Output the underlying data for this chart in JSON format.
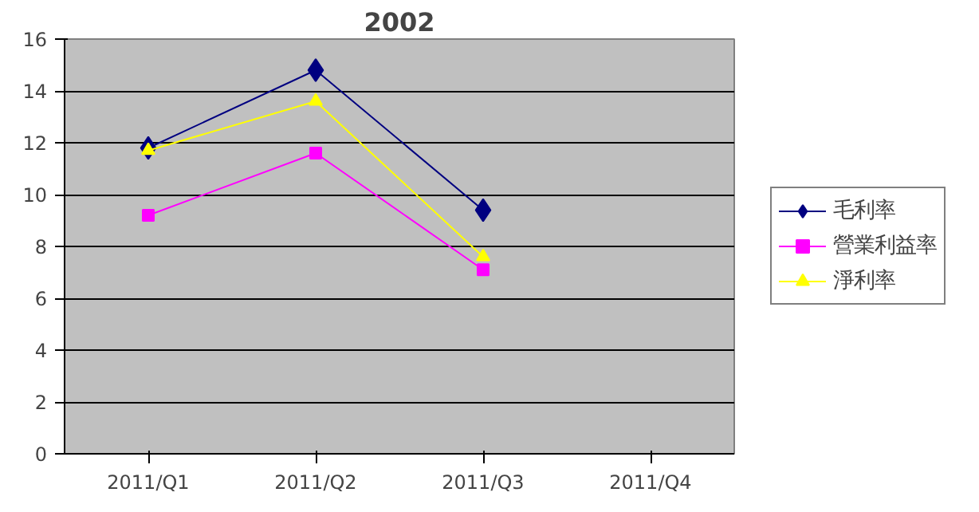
{
  "chart_data": {
    "type": "line",
    "title": "2002",
    "categories": [
      "2011/Q1",
      "2011/Q2",
      "2011/Q3",
      "2011/Q4"
    ],
    "series": [
      {
        "name": "毛利率",
        "color": "#000080",
        "marker": "diamond",
        "values": [
          11.8,
          14.8,
          9.4,
          null
        ]
      },
      {
        "name": "營業利益率",
        "color": "#ff00ff",
        "marker": "square",
        "values": [
          9.2,
          11.6,
          7.1,
          null
        ]
      },
      {
        "name": "淨利率",
        "color": "#ffff00",
        "marker": "triangle",
        "values": [
          11.7,
          13.6,
          7.6,
          null
        ]
      }
    ],
    "ylim": [
      0,
      16
    ],
    "yticks": [
      0,
      2,
      4,
      6,
      8,
      10,
      12,
      14,
      16
    ],
    "grid": "y",
    "legend": "right",
    "line_style": "solid"
  }
}
